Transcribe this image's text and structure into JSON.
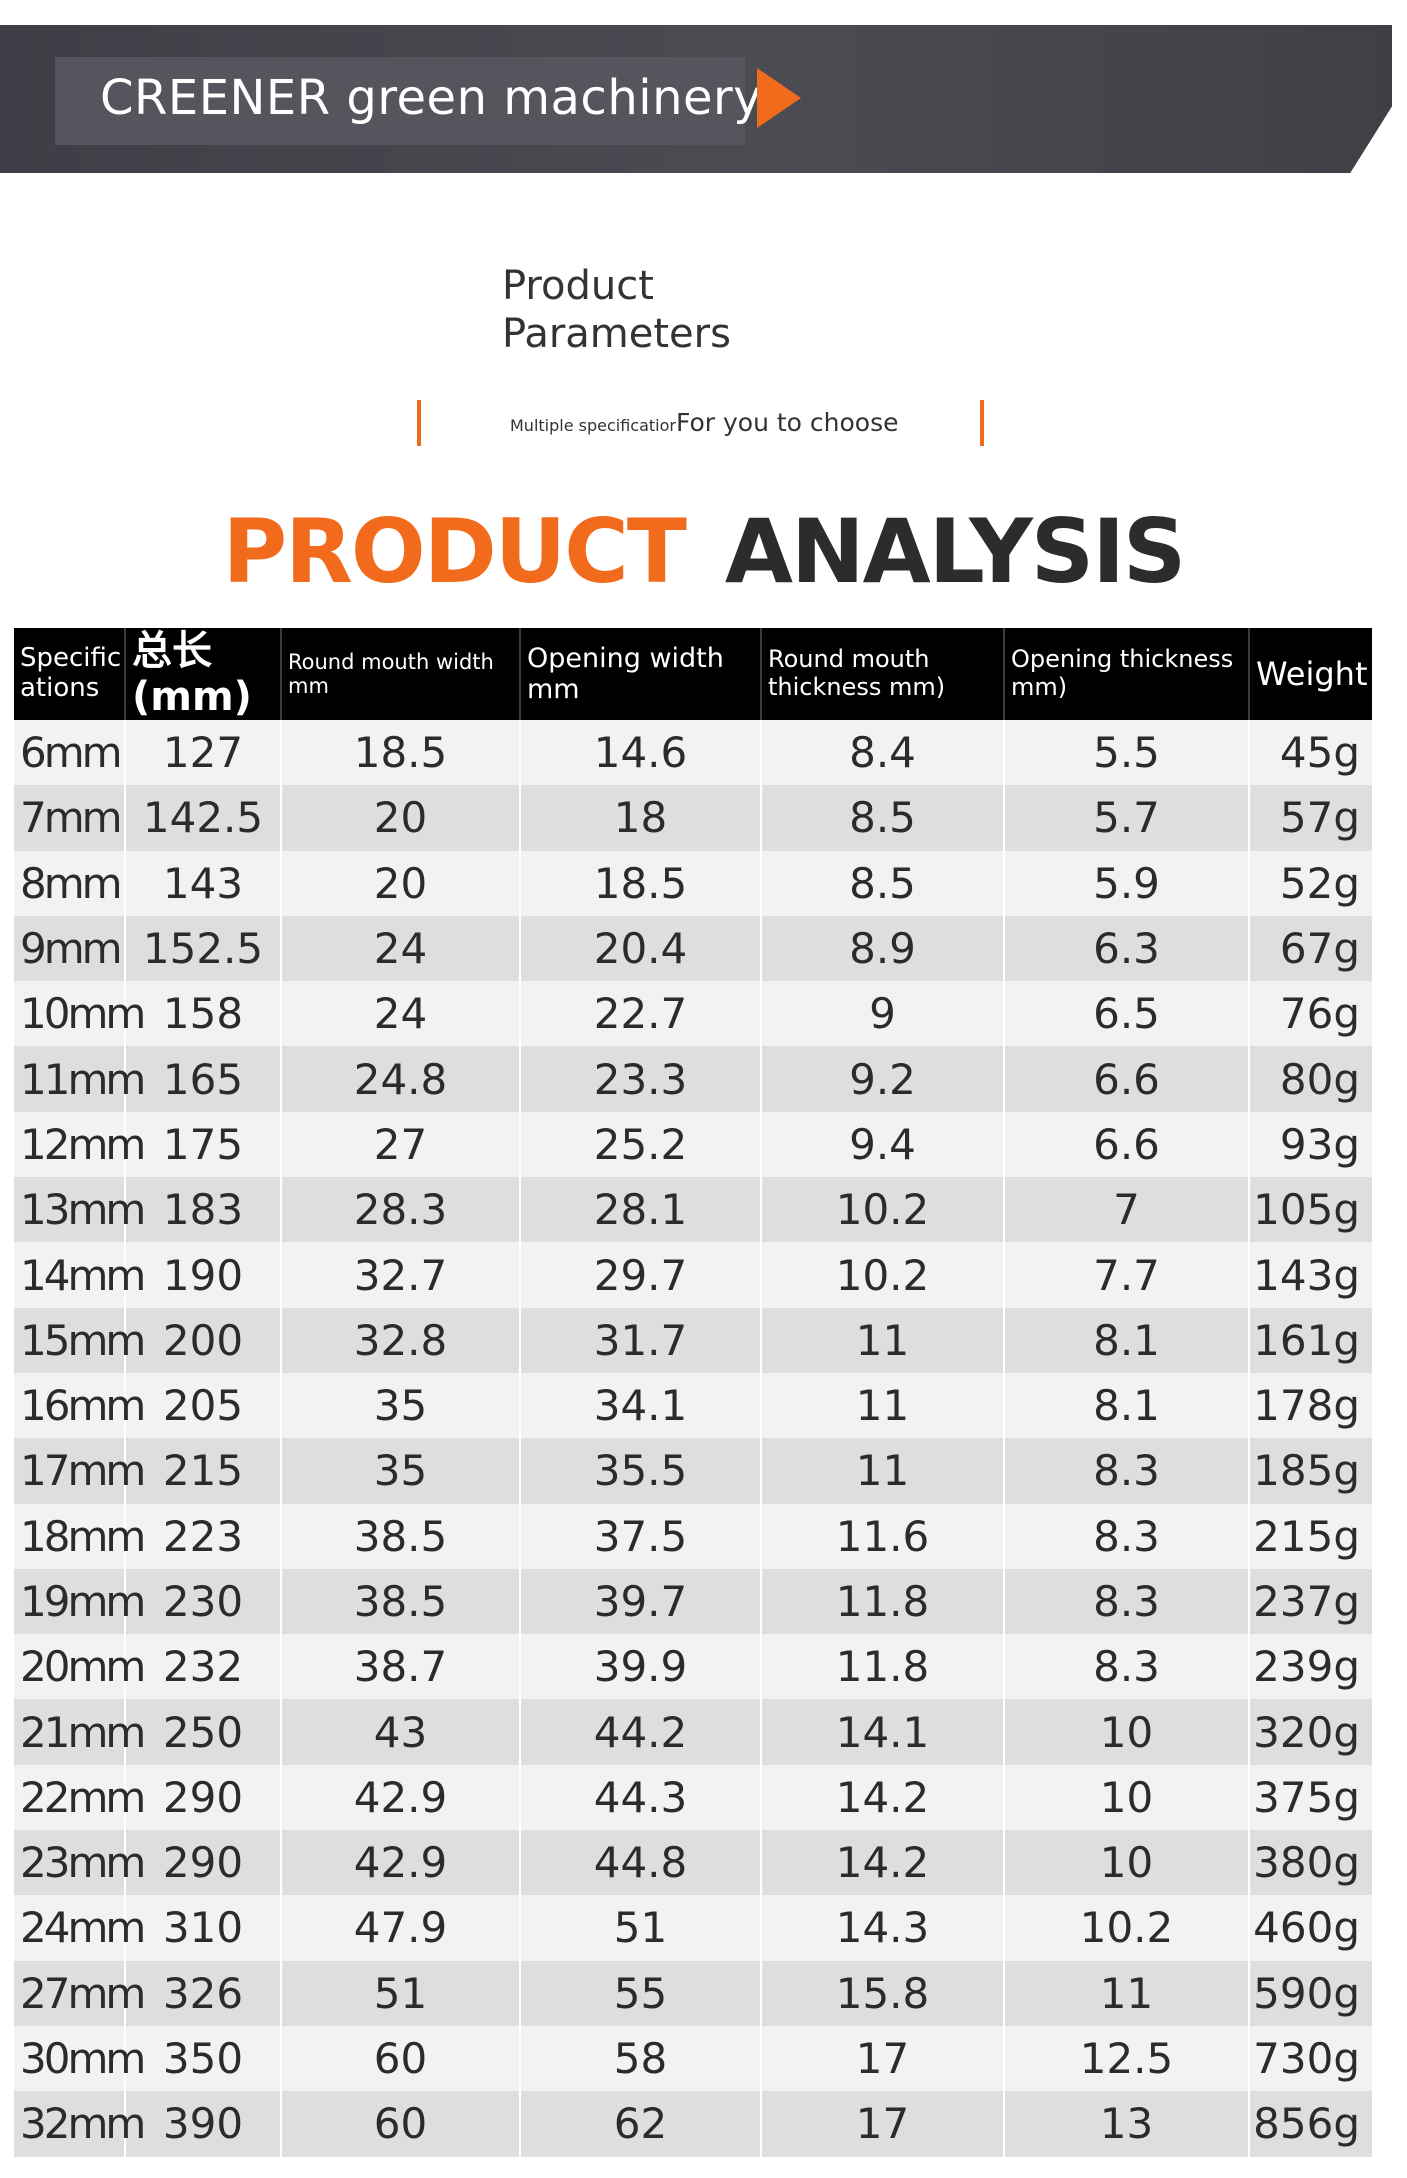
{
  "banner": {
    "title": "CREENER green machinery"
  },
  "heading": {
    "title_line1": "Product",
    "title_line2": "Parameters",
    "subtitle_small": "Multiple specificatior",
    "subtitle_main": "For you to choose"
  },
  "analysis": {
    "word1": "PRODUCT",
    "word2": "ANALYSIS"
  },
  "colors": {
    "accent": "#f26b1d",
    "banner": "#45454c",
    "header": "#000000"
  },
  "table": {
    "headers": {
      "spec": "Specific ations",
      "length": "总长",
      "length_unit": "(mm)",
      "round_width": "Round mouth width mm",
      "opening_width": "Opening width mm",
      "round_thickness": "Round mouth thickness mm)",
      "opening_thickness": "Opening thickness mm)",
      "weight": "Weight"
    },
    "rows": [
      [
        "6mm",
        "127",
        "18.5",
        "14.6",
        "8.4",
        "5.5",
        "45g"
      ],
      [
        "7mm",
        "142.5",
        "20",
        "18",
        "8.5",
        "5.7",
        "57g"
      ],
      [
        "8mm",
        "143",
        "20",
        "18.5",
        "8.5",
        "5.9",
        "52g"
      ],
      [
        "9mm",
        "152.5",
        "24",
        "20.4",
        "8.9",
        "6.3",
        "67g"
      ],
      [
        "10mm",
        "158",
        "24",
        "22.7",
        "9",
        "6.5",
        "76g"
      ],
      [
        "11mm",
        "165",
        "24.8",
        "23.3",
        "9.2",
        "6.6",
        "80g"
      ],
      [
        "12mm",
        "175",
        "27",
        "25.2",
        "9.4",
        "6.6",
        "93g"
      ],
      [
        "13mm",
        "183",
        "28.3",
        "28.1",
        "10.2",
        "7",
        "105g"
      ],
      [
        "14mm",
        "190",
        "32.7",
        "29.7",
        "10.2",
        "7.7",
        "143g"
      ],
      [
        "15mm",
        "200",
        "32.8",
        "31.7",
        "11",
        "8.1",
        "161g"
      ],
      [
        "16mm",
        "205",
        "35",
        "34.1",
        "11",
        "8.1",
        "178g"
      ],
      [
        "17mm",
        "215",
        "35",
        "35.5",
        "11",
        "8.3",
        "185g"
      ],
      [
        "18mm",
        "223",
        "38.5",
        "37.5",
        "11.6",
        "8.3",
        "215g"
      ],
      [
        "19mm",
        "230",
        "38.5",
        "39.7",
        "11.8",
        "8.3",
        "237g"
      ],
      [
        "20mm",
        "232",
        "38.7",
        "39.9",
        "11.8",
        "8.3",
        "239g"
      ],
      [
        "21mm",
        "250",
        "43",
        "44.2",
        "14.1",
        "10",
        "320g"
      ],
      [
        "22mm",
        "290",
        "42.9",
        "44.3",
        "14.2",
        "10",
        "375g"
      ],
      [
        "23mm",
        "290",
        "42.9",
        "44.8",
        "14.2",
        "10",
        "380g"
      ],
      [
        "24mm",
        "310",
        "47.9",
        "51",
        "14.3",
        "10.2",
        "460g"
      ],
      [
        "27mm",
        "326",
        "51",
        "55",
        "15.8",
        "11",
        "590g"
      ],
      [
        "30mm",
        "350",
        "60",
        "58",
        "17",
        "12.5",
        "730g"
      ],
      [
        "32mm",
        "390",
        "60",
        "62",
        "17",
        "13",
        "856g"
      ]
    ]
  }
}
